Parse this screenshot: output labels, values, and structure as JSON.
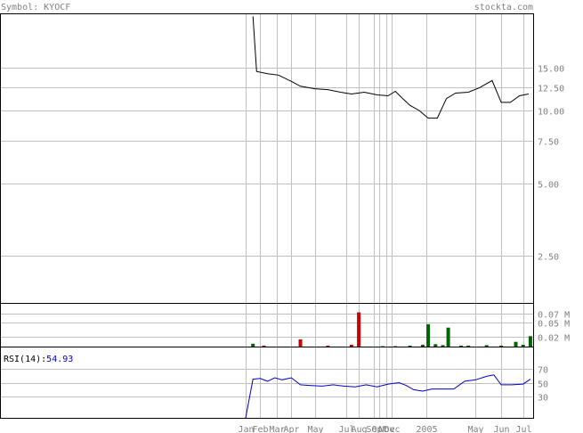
{
  "header": {
    "symbol_text": "Symbol: KYOCF",
    "site_text": "stockta.com"
  },
  "rsi": {
    "label": "RSI(14):",
    "value": "54.93"
  },
  "colors": {
    "background": "#ffffff",
    "frame": "#000000",
    "grid": "#c0c0c0",
    "price_line": "#000000",
    "volume_up": "#006400",
    "volume_down": "#cc0000",
    "rsi_line": "#0000cc",
    "header_text": "#808080",
    "axis_text": "#808080",
    "rsi_value_text": "#0000cc"
  },
  "chart_data": [
    {
      "type": "line",
      "name": "price",
      "y_scale": "log",
      "ylim": [
        1.6,
        25
      ],
      "ytick_labels": [
        "15.00",
        "12.50",
        "10.00",
        "7.50",
        "5.00",
        "2.50"
      ],
      "ytick_values": [
        15,
        12.5,
        10,
        7.5,
        5,
        2.5
      ],
      "x": [
        2004.04,
        2004.06,
        2004.12,
        2004.18,
        2004.25,
        2004.3,
        2004.38,
        2004.45,
        2004.52,
        2004.58,
        2004.65,
        2004.72,
        2004.78,
        2004.82,
        2004.86,
        2004.9,
        2004.95,
        2005.0,
        2005.05,
        2005.1,
        2005.15,
        2005.22,
        2005.28,
        2005.35,
        2005.4,
        2005.45,
        2005.5,
        2005.55
      ],
      "values": [
        24.5,
        14.5,
        14.2,
        14.0,
        13.2,
        12.6,
        12.3,
        12.2,
        11.9,
        11.7,
        11.9,
        11.6,
        11.5,
        12.0,
        11.2,
        10.5,
        10.0,
        9.3,
        9.3,
        11.2,
        11.8,
        11.9,
        12.4,
        13.3,
        10.8,
        10.8,
        11.5,
        11.7
      ]
    },
    {
      "type": "bar",
      "name": "volume",
      "ytick_labels": [
        "0.07 M",
        "0.05 M",
        "0.02 M"
      ],
      "ytick_values": [
        0.07,
        0.05,
        0.02
      ],
      "ylim": [
        0,
        0.09
      ],
      "x": [
        2004.04,
        2004.1,
        2004.3,
        2004.45,
        2004.58,
        2004.62,
        2004.75,
        2004.82,
        2004.9,
        2004.97,
        2005.0,
        2005.04,
        2005.08,
        2005.11,
        2005.18,
        2005.22,
        2005.32,
        2005.4,
        2005.48,
        2005.52,
        2005.56
      ],
      "values": [
        0.006,
        0.002,
        0.015,
        0.002,
        0.004,
        0.072,
        0.001,
        0.001,
        0.002,
        0.004,
        0.047,
        0.005,
        0.003,
        0.04,
        0.002,
        0.002,
        0.003,
        0.002,
        0.01,
        0.004,
        0.022
      ],
      "colors": [
        "up",
        "down",
        "down",
        "down",
        "down",
        "down",
        "up",
        "up",
        "up",
        "up",
        "up",
        "up",
        "up",
        "up",
        "up",
        "up",
        "up",
        "up",
        "up",
        "up",
        "up"
      ]
    },
    {
      "type": "line",
      "name": "RSI(14)",
      "ylim": [
        0,
        100
      ],
      "ytick_labels": [
        "70",
        "50",
        "30"
      ],
      "ytick_values": [
        70,
        50,
        30
      ],
      "x": [
        2004.0,
        2004.04,
        2004.08,
        2004.12,
        2004.16,
        2004.2,
        2004.25,
        2004.3,
        2004.36,
        2004.42,
        2004.48,
        2004.54,
        2004.6,
        2004.66,
        2004.72,
        2004.78,
        2004.84,
        2004.88,
        2004.92,
        2004.97,
        2005.02,
        2005.08,
        2005.14,
        2005.2,
        2005.26,
        2005.32,
        2005.36,
        2005.4,
        2005.46,
        2005.52,
        2005.56
      ],
      "values": [
        0,
        55,
        56,
        52,
        57,
        54,
        57,
        47,
        46,
        45,
        47,
        45,
        44,
        47,
        44,
        48,
        50,
        46,
        40,
        38,
        41,
        41,
        41,
        52,
        54,
        59,
        61,
        47,
        47,
        48,
        55
      ]
    }
  ],
  "x_axis": {
    "tick_labels": [
      "Jan",
      "Feb",
      "Mar",
      "Apr",
      "May",
      "Jul",
      "Aug",
      "Sep",
      "Oct",
      "Nov",
      "Dec",
      "2005",
      "May",
      "Jun",
      "Jul"
    ],
    "tick_positions": [
      2004.0,
      2004.08,
      2004.17,
      2004.25,
      2004.38,
      2004.55,
      2004.62,
      2004.7,
      2004.73,
      2004.77,
      2004.8,
      2004.99,
      2005.26,
      2005.4,
      2005.52
    ]
  }
}
